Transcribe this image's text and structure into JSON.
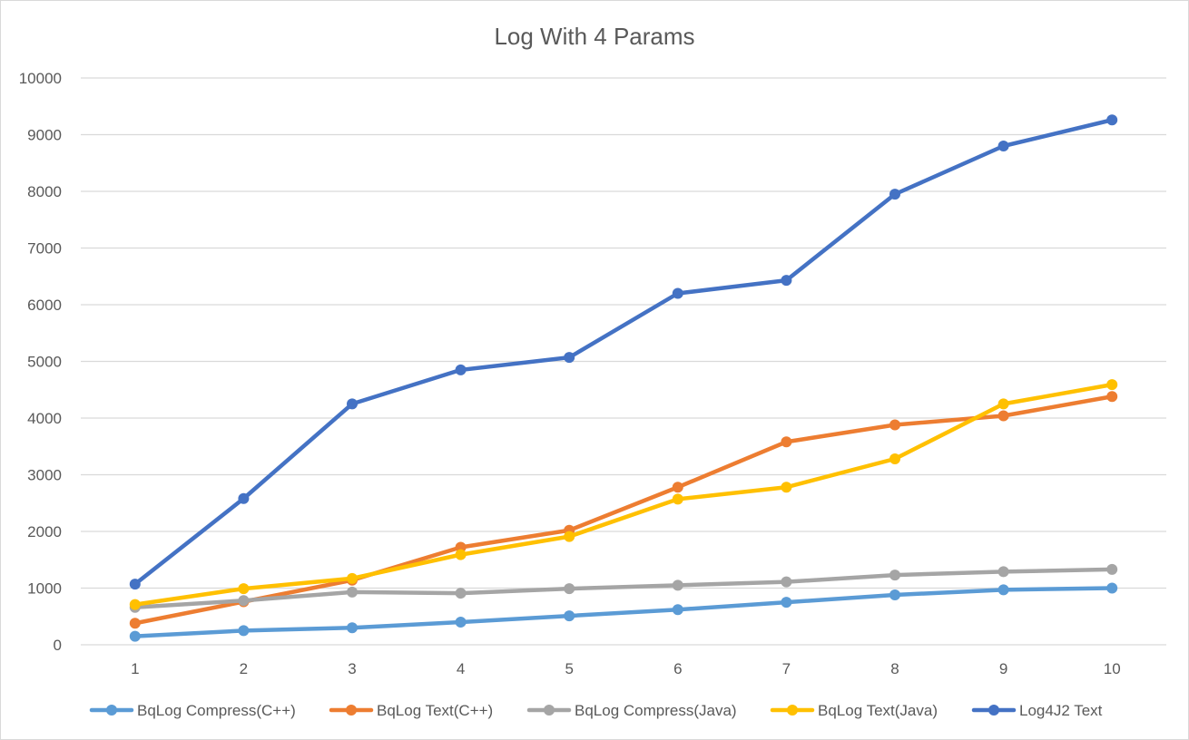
{
  "chart_data": {
    "type": "line",
    "title": "Log With 4 Params",
    "xlabel": "",
    "ylabel": "",
    "x": [
      1,
      2,
      3,
      4,
      5,
      6,
      7,
      8,
      9,
      10
    ],
    "ylim": [
      0,
      10000
    ],
    "yticks": [
      0,
      1000,
      2000,
      3000,
      4000,
      5000,
      6000,
      7000,
      8000,
      9000,
      10000
    ],
    "grid": "horizontal",
    "legend_position": "bottom",
    "series": [
      {
        "name": "BqLog Compress(C++)",
        "color": "#5B9BD5",
        "values": [
          150,
          250,
          300,
          400,
          510,
          620,
          750,
          880,
          970,
          1000
        ]
      },
      {
        "name": "BqLog Text(C++)",
        "color": "#ED7D31",
        "values": [
          380,
          760,
          1140,
          1720,
          2020,
          2780,
          3580,
          3880,
          4040,
          4380
        ]
      },
      {
        "name": "BqLog Compress(Java)",
        "color": "#A5A5A5",
        "values": [
          660,
          780,
          930,
          910,
          990,
          1050,
          1110,
          1230,
          1290,
          1330
        ]
      },
      {
        "name": "BqLog Text(Java)",
        "color": "#FFC000",
        "values": [
          710,
          990,
          1170,
          1590,
          1910,
          2570,
          2780,
          3280,
          4250,
          4590
        ]
      },
      {
        "name": "Log4J2 Text",
        "color": "#4472C4",
        "values": [
          1070,
          2580,
          4250,
          4850,
          5070,
          6200,
          6430,
          7950,
          8800,
          9260
        ]
      }
    ]
  }
}
